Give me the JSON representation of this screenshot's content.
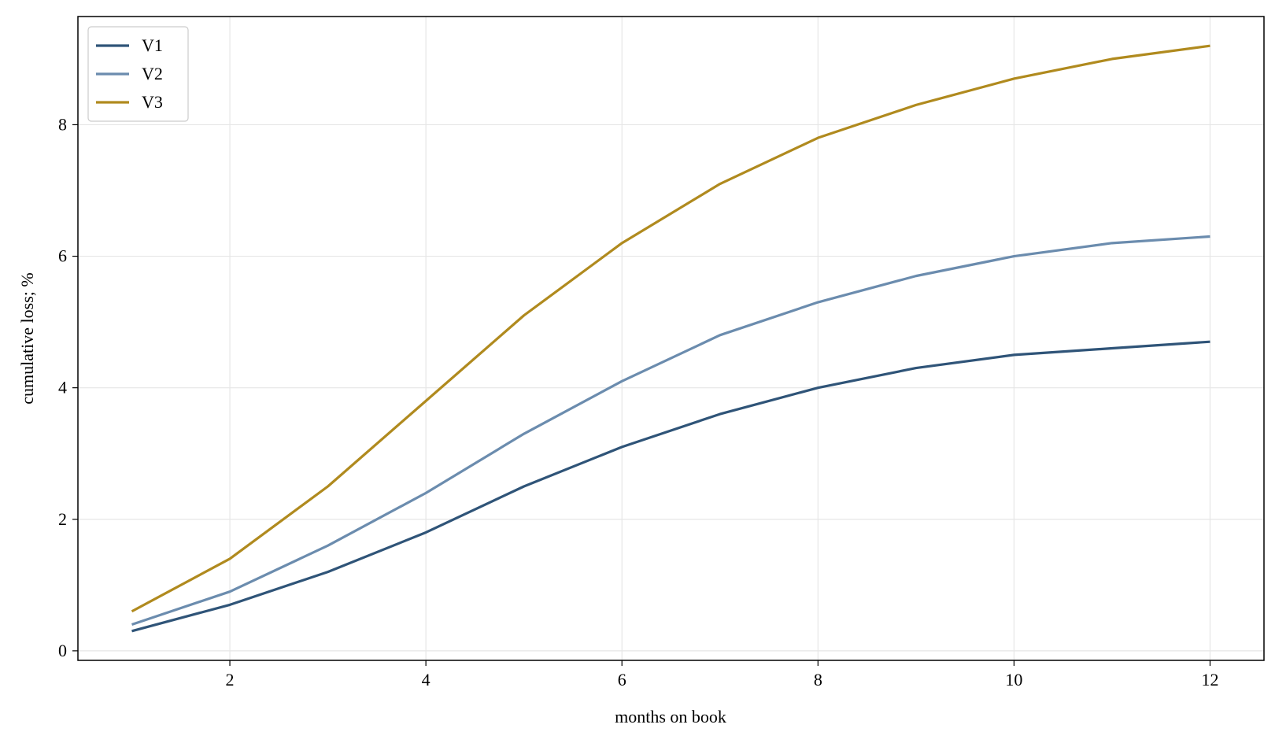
{
  "chart_data": {
    "type": "line",
    "xlabel": "months on book",
    "ylabel": "cumulative loss; %",
    "x": [
      1,
      2,
      3,
      4,
      5,
      6,
      7,
      8,
      9,
      10,
      11,
      12
    ],
    "series": [
      {
        "name": "V1",
        "color": "#2f5478",
        "values": [
          0.3,
          0.7,
          1.2,
          1.8,
          2.5,
          3.1,
          3.6,
          4.0,
          4.3,
          4.5,
          4.6,
          4.7
        ]
      },
      {
        "name": "V2",
        "color": "#6b8cae",
        "values": [
          0.4,
          0.9,
          1.6,
          2.4,
          3.3,
          4.1,
          4.8,
          5.3,
          5.7,
          6.0,
          6.2,
          6.3
        ]
      },
      {
        "name": "V3",
        "color": "#b08a1e",
        "values": [
          0.6,
          1.4,
          2.5,
          3.8,
          5.1,
          6.2,
          7.1,
          7.8,
          8.3,
          8.7,
          9.0,
          9.2
        ]
      }
    ],
    "xlim": [
      0.45,
      12.55
    ],
    "xticks": [
      2,
      4,
      6,
      8,
      10,
      12
    ],
    "ylim": [
      -0.145,
      9.645
    ],
    "yticks": [
      0,
      2,
      4,
      6,
      8
    ],
    "grid": true,
    "legend": "upper-left"
  }
}
